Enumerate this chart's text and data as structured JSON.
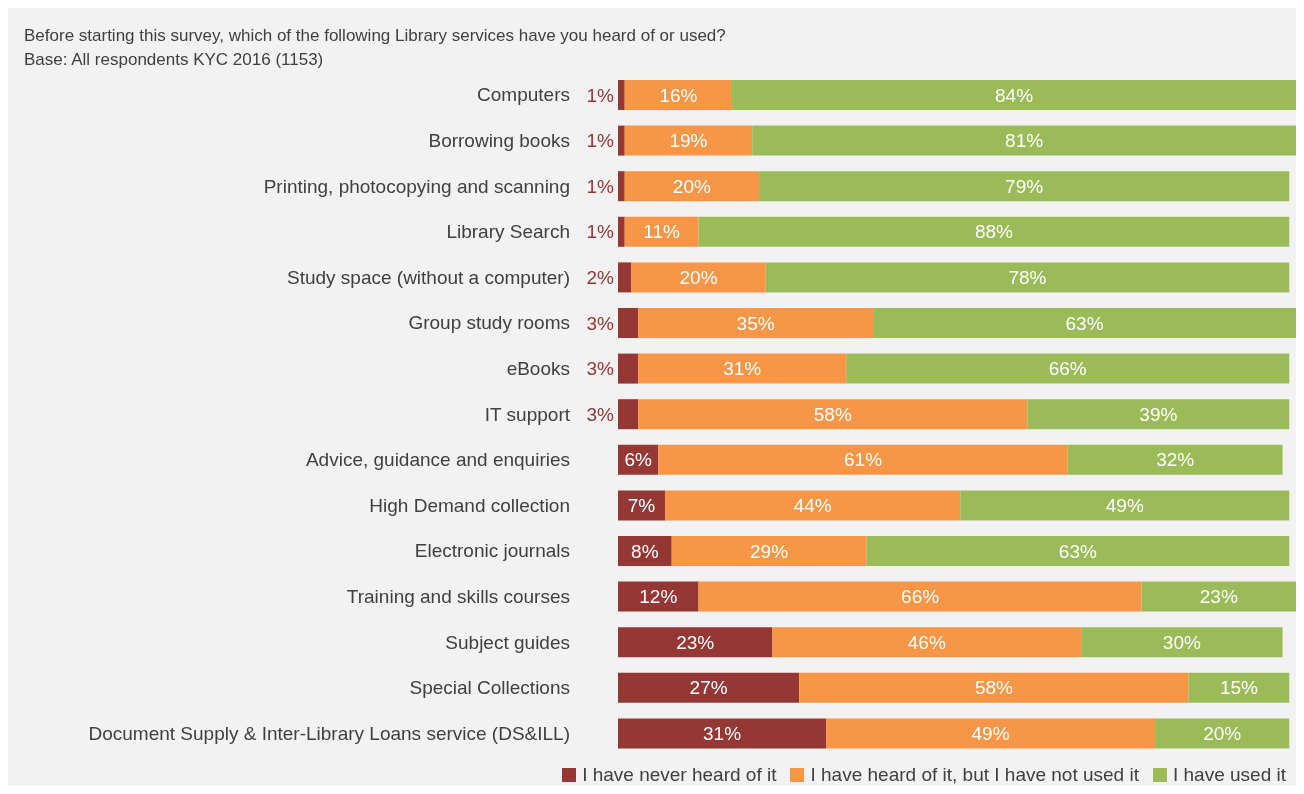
{
  "chart_data": {
    "type": "bar",
    "orientation": "horizontal",
    "stacked": true,
    "tick_labels": "y",
    "title": "Before starting this survey, which of the following Library services have you heard of or used?",
    "subtitle": "Base: All respondents KYC 2016 (1153)",
    "categories": [
      "Computers",
      "Borrowing books",
      "Printing, photocopying and scanning",
      "Library Search",
      "Study space (without a computer)",
      "Group study rooms",
      "eBooks",
      "IT support",
      "Advice, guidance and enquiries",
      "High Demand collection",
      "Electronic journals",
      "Training and skills courses",
      "Subject guides",
      "Special Collections",
      "Document Supply & Inter-Library Loans service (DS&ILL)"
    ],
    "series": [
      {
        "name": "I have never heard of it",
        "color": "#953735",
        "values": [
          1,
          1,
          1,
          1,
          2,
          3,
          3,
          3,
          6,
          7,
          8,
          12,
          23,
          27,
          31
        ],
        "value_labels": [
          "1%",
          "1%",
          "1%",
          "1%",
          "2%",
          "3%",
          "3%",
          "3%",
          "6%",
          "7%",
          "8%",
          "12%",
          "23%",
          "27%",
          "31%"
        ]
      },
      {
        "name": "I have heard of it, but I have not used it",
        "color": "#f79646",
        "values": [
          16,
          19,
          20,
          11,
          20,
          35,
          31,
          58,
          61,
          44,
          29,
          66,
          46,
          58,
          49
        ],
        "value_labels": [
          "16%",
          "19%",
          "20%",
          "11%",
          "20%",
          "35%",
          "31%",
          "58%",
          "61%",
          "44%",
          "29%",
          "66%",
          "46%",
          "58%",
          "49%"
        ]
      },
      {
        "name": "I have used it",
        "color": "#9bbb59",
        "values": [
          84,
          81,
          79,
          88,
          78,
          63,
          66,
          39,
          32,
          49,
          63,
          23,
          30,
          15,
          20
        ],
        "value_labels": [
          "84%",
          "81%",
          "79%",
          "88%",
          "78%",
          "63%",
          "66%",
          "39%",
          "32%",
          "49%",
          "63%",
          "23%",
          "30%",
          "15%",
          "20%"
        ]
      }
    ],
    "legend": "bottom right",
    "grid": false
  }
}
